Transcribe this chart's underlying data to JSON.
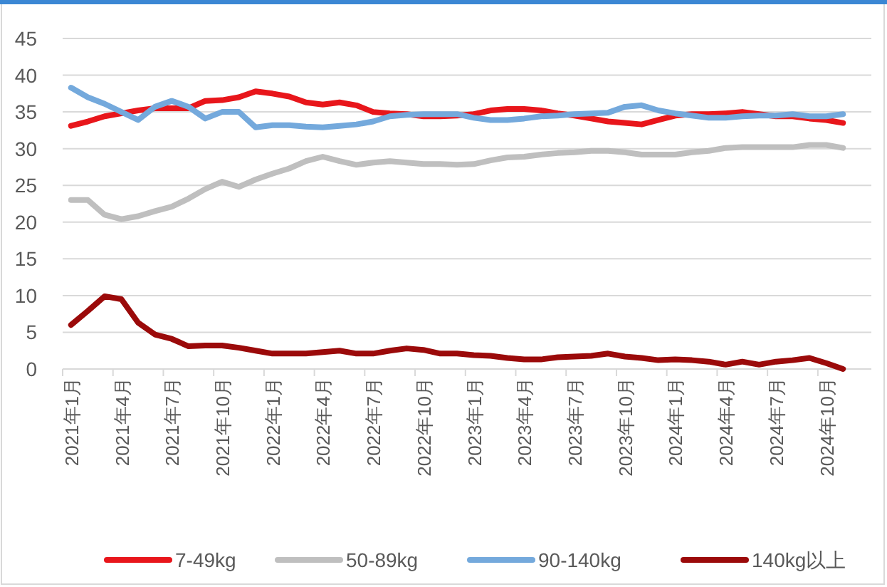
{
  "chart_data": {
    "type": "line",
    "categories": [
      "2021年1月",
      null,
      null,
      "2021年4月",
      null,
      null,
      "2021年7月",
      null,
      null,
      "2021年10月",
      null,
      null,
      "2022年1月",
      null,
      null,
      "2022年4月",
      null,
      null,
      "2022年7月",
      null,
      null,
      "2022年10月",
      null,
      null,
      "2023年1月",
      null,
      null,
      "2023年4月",
      null,
      null,
      "2023年7月",
      null,
      null,
      "2023年10月",
      null,
      null,
      "2024年1月",
      null,
      null,
      "2024年4月",
      null,
      null,
      "2024年7月",
      null,
      null,
      "2024年10月",
      null
    ],
    "series": [
      {
        "name": "7-49kg",
        "color": "#e8161b",
        "values": [
          33.1,
          33.7,
          34.4,
          34.8,
          35.2,
          35.5,
          35.5,
          35.5,
          36.5,
          36.6,
          37,
          37.8,
          37.5,
          37.1,
          36.3,
          36,
          36.3,
          35.9,
          35,
          34.8,
          34.7,
          34.4,
          34.4,
          34.5,
          34.7,
          35.2,
          35.4,
          35.4,
          35.2,
          34.8,
          34.5,
          34.1,
          33.7,
          33.5,
          33.3,
          33.9,
          34.5,
          34.7,
          34.7,
          34.8,
          35,
          34.7,
          34.4,
          34.4,
          34.1,
          33.9,
          33.5
        ]
      },
      {
        "name": "50-89kg",
        "color": "#bfbfbf",
        "values": [
          23,
          23,
          21,
          20.4,
          20.8,
          21.5,
          22.1,
          23.2,
          24.5,
          25.5,
          24.8,
          25.8,
          26.6,
          27.3,
          28.3,
          28.9,
          28.3,
          27.8,
          28.1,
          28.3,
          28.1,
          27.9,
          27.9,
          27.8,
          27.9,
          28.4,
          28.8,
          28.9,
          29.2,
          29.4,
          29.5,
          29.7,
          29.7,
          29.5,
          29.2,
          29.2,
          29.2,
          29.5,
          29.7,
          30.1,
          30.2,
          30.2,
          30.2,
          30.2,
          30.5,
          30.5,
          30.1
        ]
      },
      {
        "name": "90-140kg",
        "color": "#74a9dc",
        "values": [
          38.3,
          37,
          36.1,
          35,
          33.9,
          35.7,
          36.5,
          35.7,
          34.1,
          35,
          35,
          32.9,
          33.2,
          33.2,
          33,
          32.9,
          33.1,
          33.3,
          33.7,
          34.4,
          34.6,
          34.7,
          34.7,
          34.7,
          34.2,
          33.9,
          33.9,
          34.1,
          34.4,
          34.5,
          34.7,
          34.8,
          34.9,
          35.7,
          35.9,
          35.2,
          34.8,
          34.5,
          34.2,
          34.2,
          34.4,
          34.5,
          34.5,
          34.7,
          34.4,
          34.4,
          34.7
        ]
      },
      {
        "name": "140kg以上",
        "color": "#9b0a0a",
        "values": [
          6,
          7.9,
          9.9,
          9.5,
          6.3,
          4.7,
          4.1,
          3.1,
          3.2,
          3.2,
          2.9,
          2.5,
          2.1,
          2.1,
          2.1,
          2.3,
          2.5,
          2.1,
          2.1,
          2.5,
          2.8,
          2.6,
          2.1,
          2.1,
          1.9,
          1.8,
          1.5,
          1.3,
          1.3,
          1.6,
          1.7,
          1.8,
          2.1,
          1.7,
          1.5,
          1.2,
          1.3,
          1.2,
          1,
          0.6,
          1,
          0.6,
          1,
          1.2,
          1.5,
          0.8,
          0
        ]
      }
    ],
    "ylim": [
      0,
      45
    ],
    "yticks": [
      0,
      5,
      10,
      15,
      20,
      25,
      30,
      35,
      40,
      45
    ],
    "grid": "y",
    "legend": "bottom",
    "marker": "none",
    "line_style": "solid"
  }
}
